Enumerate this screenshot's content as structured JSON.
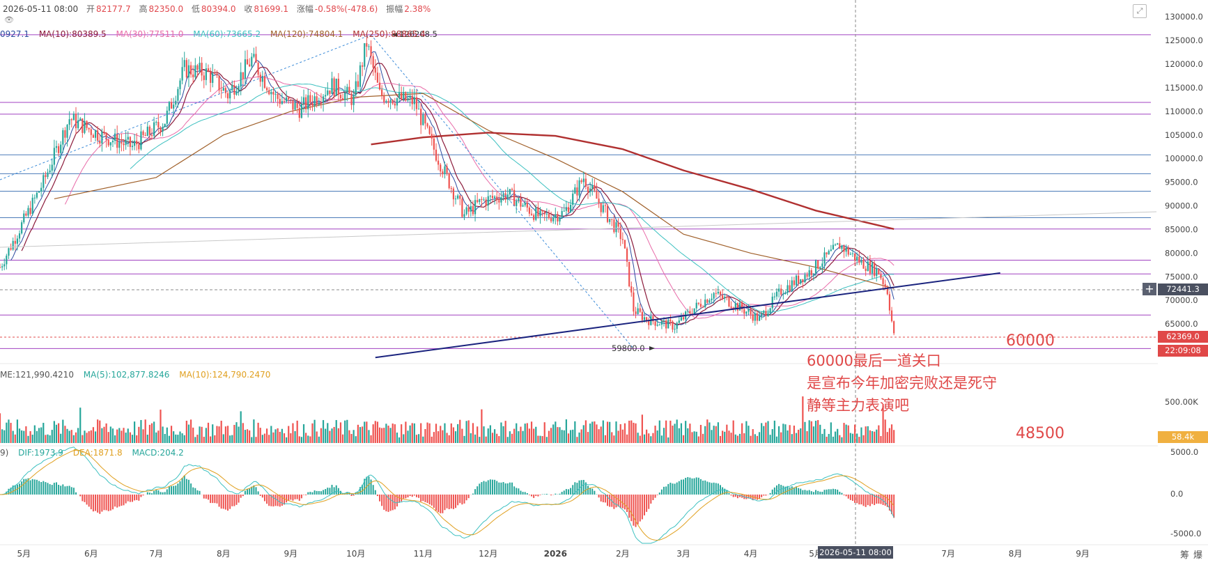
{
  "header": {
    "datetime": "2026-05-11 08:00",
    "open_label": "开",
    "open": "82177.7",
    "high_label": "高",
    "high": "82350.0",
    "low_label": "低",
    "low": "80394.0",
    "close_label": "收",
    "close": "81699.1",
    "change_label": "涨幅",
    "change": "-0.58%(-478.6)",
    "amplitude_label": "振幅",
    "amplitude": "2.38%"
  },
  "ma_legend": [
    {
      "text": "0927.1",
      "color": "#2a4aa0"
    },
    {
      "text": "MA(10):80389.5",
      "color": "#8b1a3a"
    },
    {
      "text": "MA(30):77511.0",
      "color": "#e86aa8"
    },
    {
      "text": "MA(60):73665.2",
      "color": "#3cc0c0"
    },
    {
      "text": "MA(120):74804.1",
      "color": "#a0602a"
    },
    {
      "text": "MA(250):88865.4",
      "color": "#b03030"
    }
  ],
  "vol_legend": [
    {
      "text": "ME:121,990.4210",
      "color": "#555555"
    },
    {
      "text": "MA(5):102,877.8246",
      "color": "#26a69a"
    },
    {
      "text": "MA(10):124,790.2470",
      "color": "#e0a020"
    }
  ],
  "macd_legend": [
    {
      "text": "9)",
      "color": "#555555"
    },
    {
      "text": "DIF:1973.9",
      "color": "#26a69a"
    },
    {
      "text": "DEA:1871.8",
      "color": "#e0a020"
    },
    {
      "text": "MACD:204.2",
      "color": "#26a69a"
    }
  ],
  "annotations": {
    "level_60000": "60000",
    "level_48500": "48500",
    "line1": "60000最后一道关口",
    "line2": "是宣布今年加密完败还是死守",
    "line3": "静等主力表演吧",
    "high_marker": "126208.5",
    "low_marker": "59800.0"
  },
  "tags": {
    "crosshair_price": "72441.3",
    "current_price": "62369.0",
    "countdown": "22:09:08",
    "volume_current": "58.4k",
    "crosshair_date": "2026-05-11 08:00"
  },
  "colors": {
    "up": "#26a69a",
    "down": "#ef5350",
    "trendline": "#1a237e",
    "ma250": "#b03030",
    "ma120": "#a0602a",
    "h_purple": "#a040c0",
    "h_blue": "#4a7ab8",
    "annot": "#e04848"
  },
  "corner_icons": [
    "筹",
    "爆"
  ],
  "chart_data": {
    "type": "candlestick",
    "title": "",
    "y_ticks": [
      130000,
      125000,
      120000,
      115000,
      110000,
      105000,
      100000,
      95000,
      90000,
      85000,
      80000,
      75000,
      70000,
      65000
    ],
    "y_tick_labels": [
      "130000.0",
      "125000.0",
      "120000.0",
      "115000.0",
      "110000.0",
      "105000.0",
      "100000.0",
      "95000.0",
      "90000.0",
      "85000.0",
      "80000.0",
      "75000.0",
      "70000.0",
      "65000.0"
    ],
    "ylim": [
      57500,
      131500
    ],
    "x_tick_labels": [
      "5月",
      "6月",
      "7月",
      "8月",
      "9月",
      "10月",
      "11月",
      "12月",
      "2026",
      "2月",
      "3月",
      "4月",
      "5月",
      "6月",
      "7月",
      "8月",
      "9月"
    ],
    "x_tick_months": [
      "2025-05",
      "2025-06",
      "2025-07",
      "2025-08",
      "2025-09",
      "2025-10",
      "2025-11",
      "2025-12",
      "2026-01",
      "2026-02",
      "2026-03",
      "2026-04",
      "2026-05",
      "2026-06",
      "2026-07",
      "2026-08",
      "2026-09"
    ],
    "horizontal_levels": [
      {
        "price": 126208.5,
        "color": "purple"
      },
      {
        "price": 111900,
        "color": "purple"
      },
      {
        "price": 109400,
        "color": "purple"
      },
      {
        "price": 100800,
        "color": "blue"
      },
      {
        "price": 96800,
        "color": "blue"
      },
      {
        "price": 93100,
        "color": "blue"
      },
      {
        "price": 87500,
        "color": "blue"
      },
      {
        "price": 85100,
        "color": "purple"
      },
      {
        "price": 78500,
        "color": "purple"
      },
      {
        "price": 75600,
        "color": "purple"
      },
      {
        "price": 66900,
        "color": "purple"
      },
      {
        "price": 59800,
        "color": "purple"
      }
    ],
    "trendline": {
      "from": [
        "2025-10-10",
        57900
      ],
      "to": [
        "2026-07-25",
        75800
      ]
    },
    "price_path": [
      [
        "2025-04-20",
        77000
      ],
      [
        "2025-05-10",
        95000
      ],
      [
        "2025-05-22",
        108500
      ],
      [
        "2025-06-05",
        105000
      ],
      [
        "2025-06-20",
        102500
      ],
      [
        "2025-07-05",
        108000
      ],
      [
        "2025-07-14",
        119000
      ],
      [
        "2025-07-25",
        118000
      ],
      [
        "2025-08-03",
        113500
      ],
      [
        "2025-08-14",
        121000
      ],
      [
        "2025-08-25",
        113000
      ],
      [
        "2025-09-05",
        110500
      ],
      [
        "2025-09-20",
        115500
      ],
      [
        "2025-09-30",
        112500
      ],
      [
        "2025-10-06",
        124500
      ],
      [
        "2025-10-12",
        113500
      ],
      [
        "2025-10-28",
        112000
      ],
      [
        "2025-11-05",
        103000
      ],
      [
        "2025-11-20",
        88000
      ],
      [
        "2025-11-28",
        91000
      ],
      [
        "2025-12-10",
        92500
      ],
      [
        "2025-12-25",
        87500
      ],
      [
        "2026-01-05",
        88500
      ],
      [
        "2026-01-14",
        96000
      ],
      [
        "2026-01-22",
        90000
      ],
      [
        "2026-02-01",
        83000
      ],
      [
        "2026-02-06",
        68000
      ],
      [
        "2026-02-12",
        66000
      ],
      [
        "2026-02-25",
        64500
      ],
      [
        "2026-03-05",
        68000
      ],
      [
        "2026-03-15",
        71500
      ],
      [
        "2026-03-25",
        69000
      ],
      [
        "2026-04-05",
        66000
      ],
      [
        "2026-04-15",
        72000
      ],
      [
        "2026-04-28",
        76000
      ],
      [
        "2026-05-08",
        80000
      ],
      [
        "2026-05-12",
        81700
      ],
      [
        "2026-05-22",
        78000
      ],
      [
        "2026-05-30",
        76000
      ],
      [
        "2026-06-03",
        72000
      ],
      [
        "2026-06-06",
        62369
      ]
    ],
    "ma250_path": [
      [
        "2025-10-08",
        103000
      ],
      [
        "2025-11-01",
        104500
      ],
      [
        "2025-12-01",
        105500
      ],
      [
        "2026-01-01",
        104800
      ],
      [
        "2026-02-01",
        102000
      ],
      [
        "2026-03-01",
        97500
      ],
      [
        "2026-04-01",
        93500
      ],
      [
        "2026-05-01",
        89000
      ],
      [
        "2026-06-06",
        85100
      ]
    ],
    "ma120_path": [
      [
        "2025-05-15",
        91500
      ],
      [
        "2025-07-01",
        96000
      ],
      [
        "2025-08-01",
        105000
      ],
      [
        "2025-09-01",
        110000
      ],
      [
        "2025-10-01",
        113000
      ],
      [
        "2025-11-01",
        113800
      ],
      [
        "2025-12-01",
        106000
      ],
      [
        "2026-01-01",
        100000
      ],
      [
        "2026-02-01",
        93000
      ],
      [
        "2026-03-01",
        84000
      ],
      [
        "2026-04-01",
        80000
      ],
      [
        "2026-05-01",
        77000
      ],
      [
        "2026-06-06",
        72500
      ]
    ],
    "volume_y_ticks": [
      "500.00K"
    ],
    "macd_y_ticks": [
      "5000.0",
      "0.0",
      "-5000.0"
    ]
  }
}
